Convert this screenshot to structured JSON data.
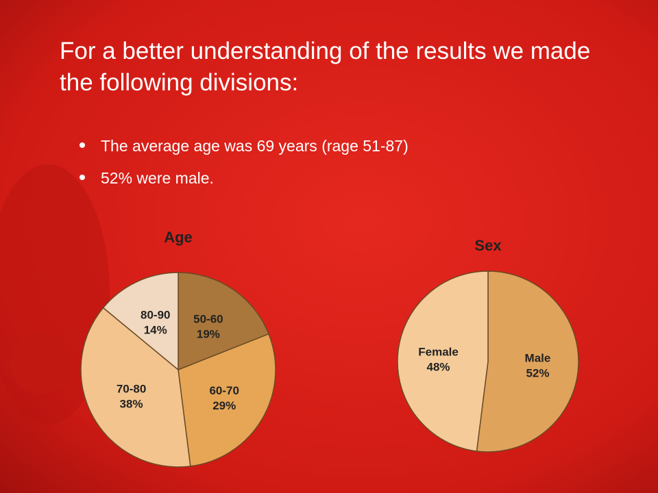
{
  "title": "For a better understanding of the results we made the following divisions:",
  "bullets": [
    "The average age was 69 years (rage 51-87)",
    "52% were male."
  ],
  "chart_data": [
    {
      "type": "pie",
      "title": "Age",
      "categories": [
        "50-60",
        "60-70",
        "70-80",
        "80-90"
      ],
      "values": [
        19,
        29,
        38,
        14
      ],
      "value_labels": [
        "19%",
        "29%",
        "38%",
        "14%"
      ],
      "colors": [
        "#a9773c",
        "#e6a656",
        "#f3c48e",
        "#f1d8c0"
      ]
    },
    {
      "type": "pie",
      "title": "Sex",
      "categories": [
        "Male",
        "Female"
      ],
      "values": [
        52,
        48
      ],
      "value_labels": [
        "52%",
        "48%"
      ],
      "colors": [
        "#e0a35c",
        "#f5cc99"
      ]
    }
  ]
}
